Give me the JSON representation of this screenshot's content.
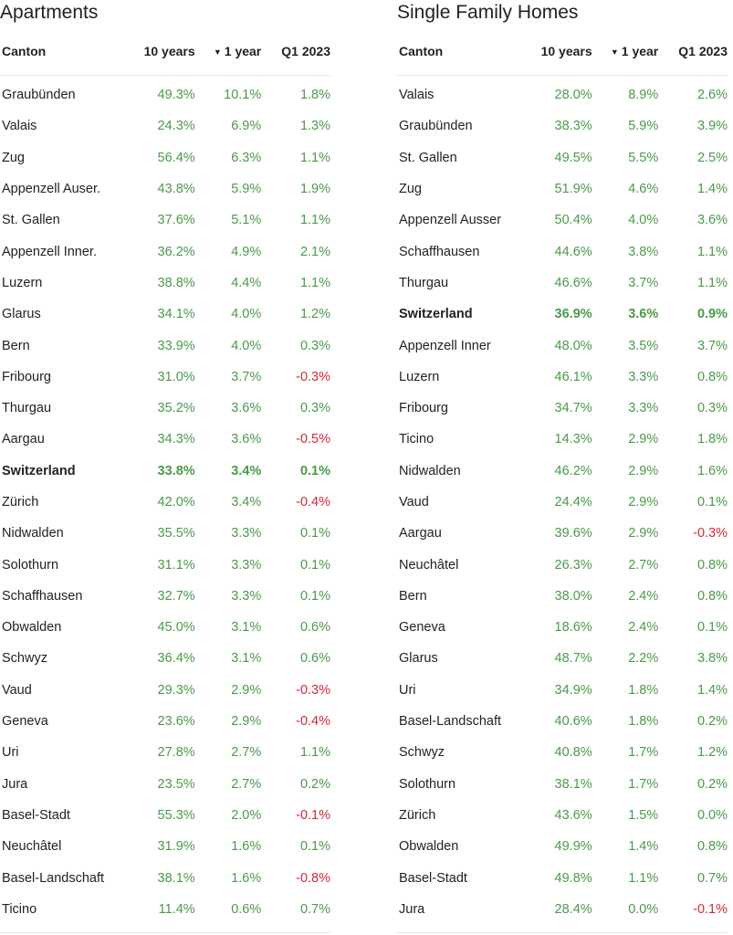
{
  "colors": {
    "positive": "#4a9a4a",
    "negative": "#d02a3a",
    "text": "#222222"
  },
  "sort_indicator_icon": "triangle-down-icon",
  "tables": [
    {
      "title": "Apartments",
      "headers": [
        "Canton",
        "10 years",
        "1 year",
        "Q1 2023"
      ],
      "sort_glyph": "▼",
      "rows": [
        {
          "canton": "Graubünden",
          "y10": "49.3%",
          "y1": "10.1%",
          "q1": "1.8%"
        },
        {
          "canton": "Valais",
          "y10": "24.3%",
          "y1": "6.9%",
          "q1": "1.3%"
        },
        {
          "canton": "Zug",
          "y10": "56.4%",
          "y1": "6.3%",
          "q1": "1.1%"
        },
        {
          "canton": "Appenzell Auser.",
          "y10": "43.8%",
          "y1": "5.9%",
          "q1": "1.9%"
        },
        {
          "canton": "St. Gallen",
          "y10": "37.6%",
          "y1": "5.1%",
          "q1": "1.1%"
        },
        {
          "canton": "Appenzell Inner.",
          "y10": "36.2%",
          "y1": "4.9%",
          "q1": "2.1%"
        },
        {
          "canton": "Luzern",
          "y10": "38.8%",
          "y1": "4.4%",
          "q1": "1.1%"
        },
        {
          "canton": "Glarus",
          "y10": "34.1%",
          "y1": "4.0%",
          "q1": "1.2%"
        },
        {
          "canton": "Bern",
          "y10": "33.9%",
          "y1": "4.0%",
          "q1": "0.3%"
        },
        {
          "canton": "Fribourg",
          "y10": "31.0%",
          "y1": "3.7%",
          "q1": "-0.3%"
        },
        {
          "canton": "Thurgau",
          "y10": "35.2%",
          "y1": "3.6%",
          "q1": "0.3%"
        },
        {
          "canton": "Aargau",
          "y10": "34.3%",
          "y1": "3.6%",
          "q1": "-0.5%"
        },
        {
          "canton": "Switzerland",
          "y10": "33.8%",
          "y1": "3.4%",
          "q1": "0.1%",
          "bold": true
        },
        {
          "canton": "Zürich",
          "y10": "42.0%",
          "y1": "3.4%",
          "q1": "-0.4%"
        },
        {
          "canton": "Nidwalden",
          "y10": "35.5%",
          "y1": "3.3%",
          "q1": "0.1%"
        },
        {
          "canton": "Solothurn",
          "y10": "31.1%",
          "y1": "3.3%",
          "q1": "0.1%"
        },
        {
          "canton": "Schaffhausen",
          "y10": "32.7%",
          "y1": "3.3%",
          "q1": "0.1%"
        },
        {
          "canton": "Obwalden",
          "y10": "45.0%",
          "y1": "3.1%",
          "q1": "0.6%"
        },
        {
          "canton": "Schwyz",
          "y10": "36.4%",
          "y1": "3.1%",
          "q1": "0.6%"
        },
        {
          "canton": "Vaud",
          "y10": "29.3%",
          "y1": "2.9%",
          "q1": "-0.3%"
        },
        {
          "canton": "Geneva",
          "y10": "23.6%",
          "y1": "2.9%",
          "q1": "-0.4%"
        },
        {
          "canton": "Uri",
          "y10": "27.8%",
          "y1": "2.7%",
          "q1": "1.1%"
        },
        {
          "canton": "Jura",
          "y10": "23.5%",
          "y1": "2.7%",
          "q1": "0.2%"
        },
        {
          "canton": "Basel-Stadt",
          "y10": "55.3%",
          "y1": "2.0%",
          "q1": "-0.1%"
        },
        {
          "canton": "Neuchâtel",
          "y10": "31.9%",
          "y1": "1.6%",
          "q1": "0.1%"
        },
        {
          "canton": "Basel-Landschaft",
          "y10": "38.1%",
          "y1": "1.6%",
          "q1": "-0.8%"
        },
        {
          "canton": "Ticino",
          "y10": "11.4%",
          "y1": "0.6%",
          "q1": "0.7%"
        }
      ]
    },
    {
      "title": "Single Family Homes",
      "headers": [
        "Canton",
        "10 years",
        "1 year",
        "Q1 2023"
      ],
      "sort_glyph": "▼",
      "rows": [
        {
          "canton": "Valais",
          "y10": "28.0%",
          "y1": "8.9%",
          "q1": "2.6%"
        },
        {
          "canton": "Graubünden",
          "y10": "38.3%",
          "y1": "5.9%",
          "q1": "3.9%"
        },
        {
          "canton": "St. Gallen",
          "y10": "49.5%",
          "y1": "5.5%",
          "q1": "2.5%"
        },
        {
          "canton": "Zug",
          "y10": "51.9%",
          "y1": "4.6%",
          "q1": "1.4%"
        },
        {
          "canton": "Appenzell Ausser",
          "y10": "50.4%",
          "y1": "4.0%",
          "q1": "3.6%"
        },
        {
          "canton": "Schaffhausen",
          "y10": "44.6%",
          "y1": "3.8%",
          "q1": "1.1%"
        },
        {
          "canton": "Thurgau",
          "y10": "46.6%",
          "y1": "3.7%",
          "q1": "1.1%"
        },
        {
          "canton": "Switzerland",
          "y10": "36.9%",
          "y1": "3.6%",
          "q1": "0.9%",
          "bold": true
        },
        {
          "canton": "Appenzell Inner",
          "y10": "48.0%",
          "y1": "3.5%",
          "q1": "3.7%"
        },
        {
          "canton": "Luzern",
          "y10": "46.1%",
          "y1": "3.3%",
          "q1": "0.8%"
        },
        {
          "canton": "Fribourg",
          "y10": "34.7%",
          "y1": "3.3%",
          "q1": "0.3%"
        },
        {
          "canton": "Ticino",
          "y10": "14.3%",
          "y1": "2.9%",
          "q1": "1.8%"
        },
        {
          "canton": "Nidwalden",
          "y10": "46.2%",
          "y1": "2.9%",
          "q1": "1.6%"
        },
        {
          "canton": "Vaud",
          "y10": "24.4%",
          "y1": "2.9%",
          "q1": "0.1%"
        },
        {
          "canton": "Aargau",
          "y10": "39.6%",
          "y1": "2.9%",
          "q1": "-0.3%"
        },
        {
          "canton": "Neuchâtel",
          "y10": "26.3%",
          "y1": "2.7%",
          "q1": "0.8%"
        },
        {
          "canton": "Bern",
          "y10": "38.0%",
          "y1": "2.4%",
          "q1": "0.8%"
        },
        {
          "canton": "Geneva",
          "y10": "18.6%",
          "y1": "2.4%",
          "q1": "0.1%"
        },
        {
          "canton": "Glarus",
          "y10": "48.7%",
          "y1": "2.2%",
          "q1": "3.8%"
        },
        {
          "canton": "Uri",
          "y10": "34.9%",
          "y1": "1.8%",
          "q1": "1.4%"
        },
        {
          "canton": "Basel-Landschaft",
          "y10": "40.6%",
          "y1": "1.8%",
          "q1": "0.2%"
        },
        {
          "canton": "Schwyz",
          "y10": "40.8%",
          "y1": "1.7%",
          "q1": "1.2%"
        },
        {
          "canton": "Solothurn",
          "y10": "38.1%",
          "y1": "1.7%",
          "q1": "0.2%"
        },
        {
          "canton": "Zürich",
          "y10": "43.6%",
          "y1": "1.5%",
          "q1": "0.0%"
        },
        {
          "canton": "Obwalden",
          "y10": "49.9%",
          "y1": "1.4%",
          "q1": "0.8%"
        },
        {
          "canton": "Basel-Stadt",
          "y10": "49.8%",
          "y1": "1.1%",
          "q1": "0.7%"
        },
        {
          "canton": "Jura",
          "y10": "28.4%",
          "y1": "0.0%",
          "q1": "-0.1%"
        }
      ]
    }
  ]
}
